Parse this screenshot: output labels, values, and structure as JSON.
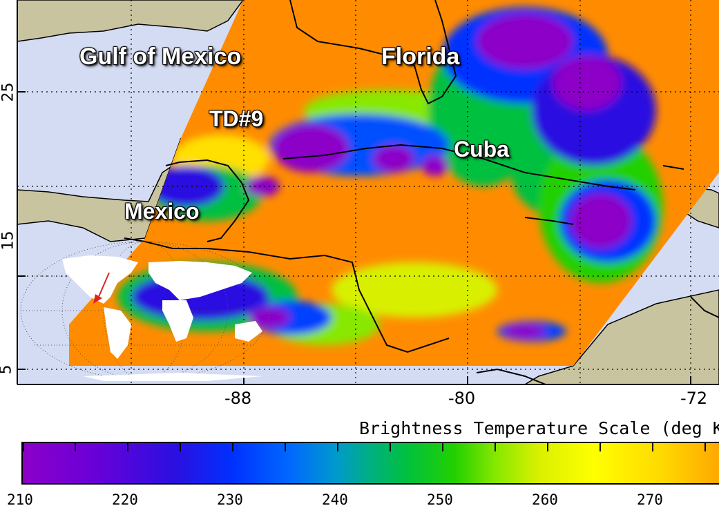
{
  "map": {
    "labels": {
      "gulf": "Gulf of Mexico",
      "florida": "Florida",
      "td9": "TD#9",
      "cuba": "Cuba",
      "mexico": "Mexico"
    },
    "x_ticks": [
      "-88",
      "-80",
      "-72"
    ],
    "y_ticks": [
      "25",
      "15",
      "5"
    ],
    "colors": {
      "ocean": "#d4dcf4",
      "land": "#c8c4a0",
      "warm": "#ff8c00",
      "cold": "#8c00c8"
    }
  },
  "colorbar": {
    "title": "Brightness Temperature Scale (deg K",
    "ticks": [
      "210",
      "220",
      "230",
      "240",
      "250",
      "260",
      "270"
    ]
  }
}
